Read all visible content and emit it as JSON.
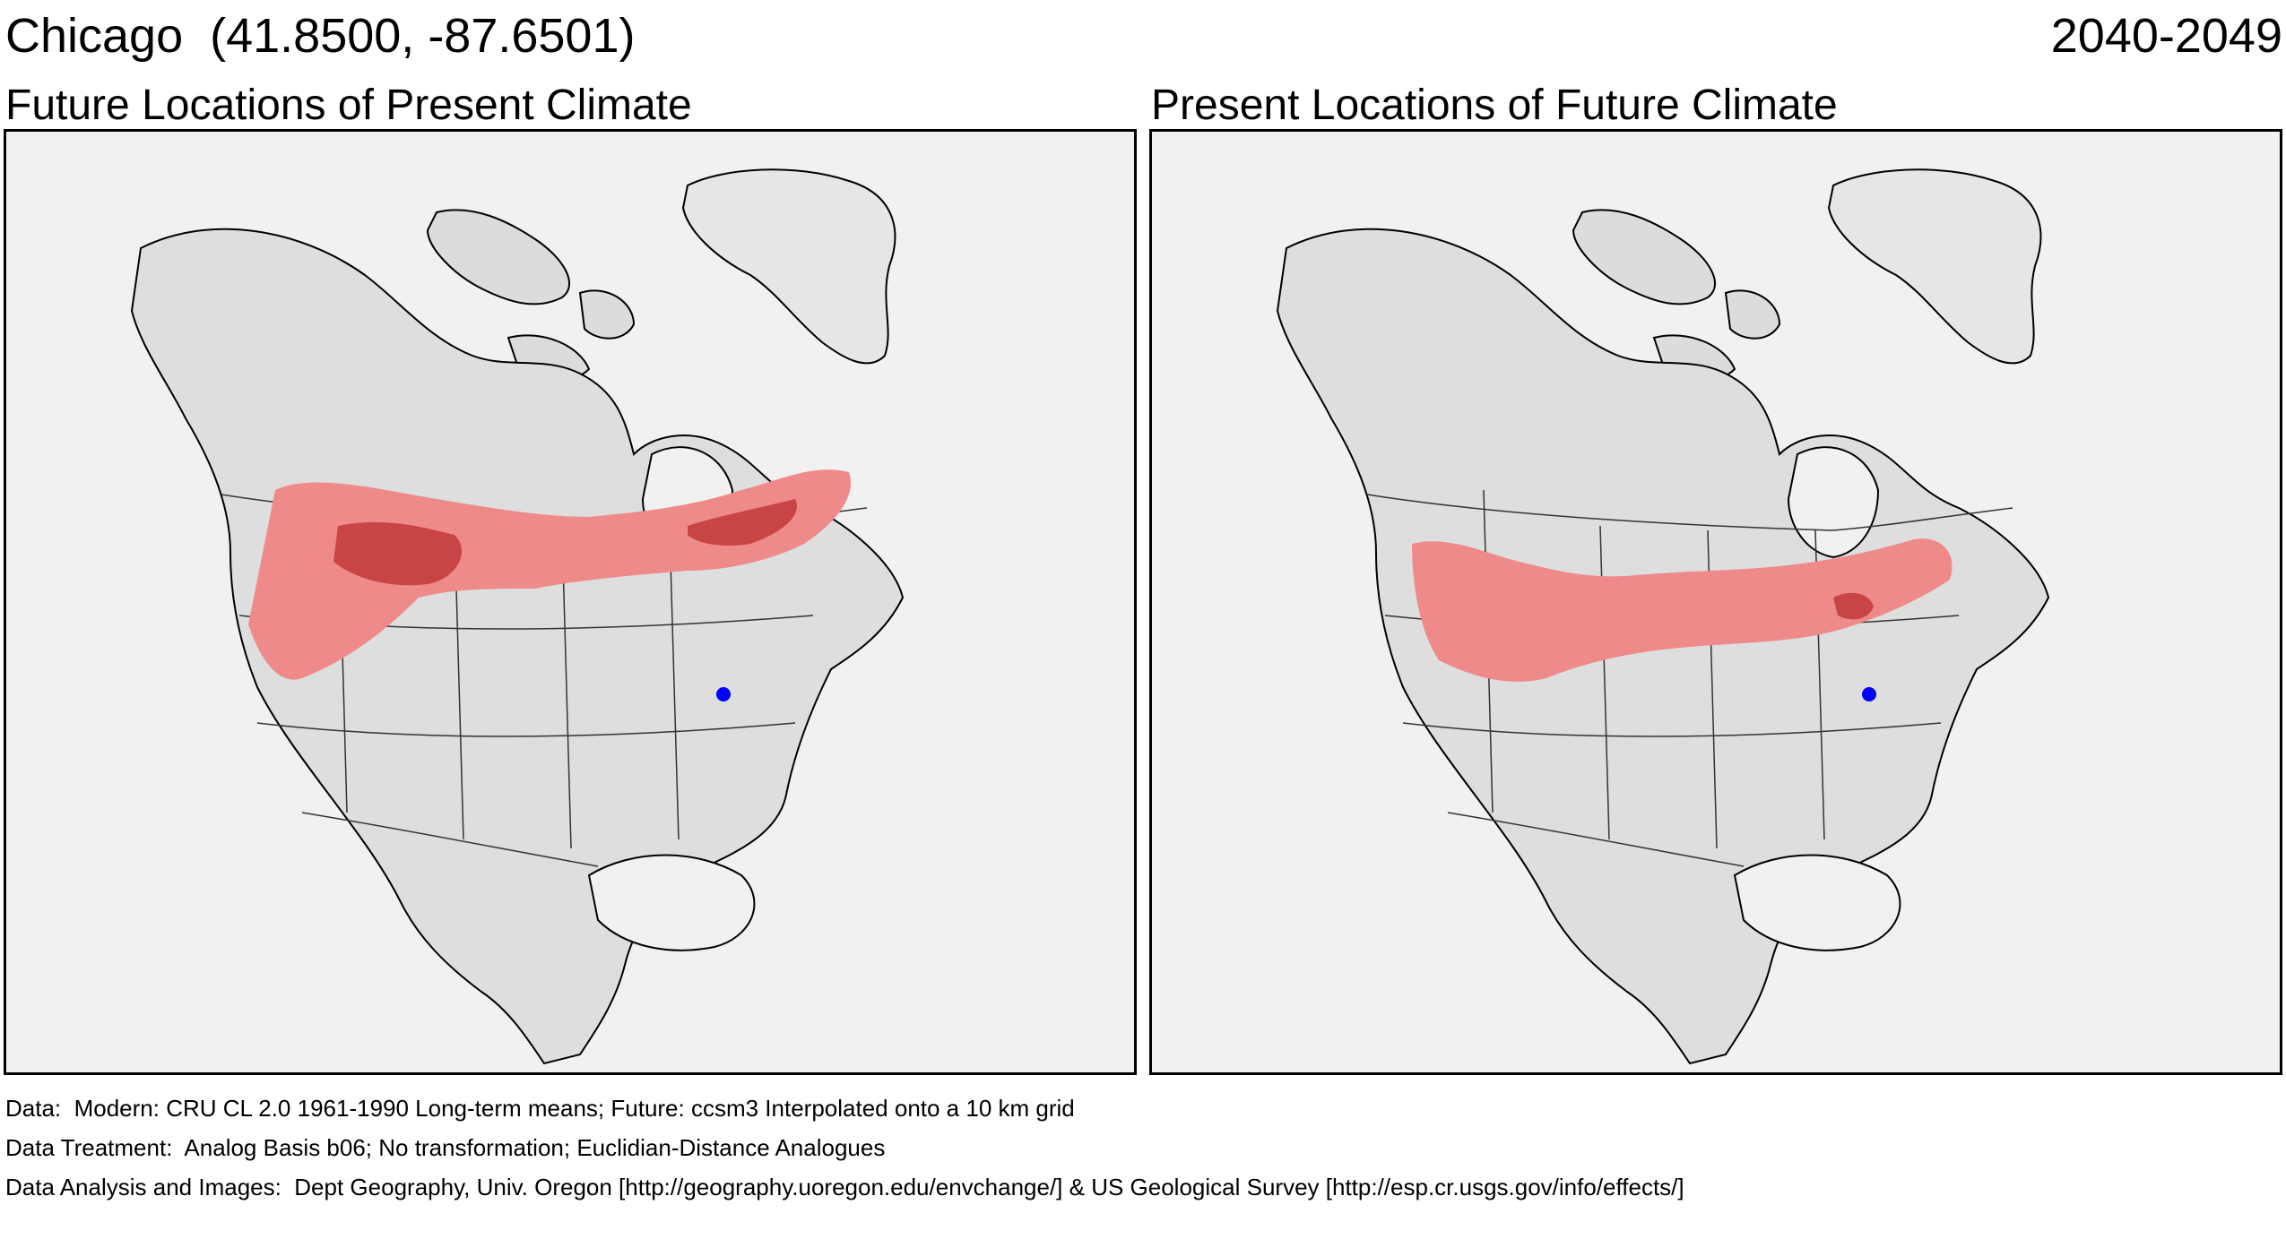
{
  "header": {
    "location": "Chicago  (41.8500, -87.6501)",
    "period": "2040-2049"
  },
  "panels": [
    {
      "title": "Future Locations of Present Climate",
      "colors": {
        "analog_light": "#ef8a8a",
        "analog_dark": "#c94545",
        "site": "#0000ff"
      }
    },
    {
      "title": "Present Locations of Future Climate",
      "colors": {
        "analog_light": "#ef8a8a",
        "analog_dark": "#c94545",
        "site": "#0000ff"
      }
    }
  ],
  "footer": {
    "data": "Data:  Modern: CRU CL 2.0 1961-1990 Long-term means; Future: ccsm3 Interpolated onto a 10 km grid",
    "treatment": "Data Treatment:  Analog Basis b06; No transformation; Euclidian-Distance Analogues",
    "analysis": "Data Analysis and Images:  Dept Geography, Univ. Oregon [http://geography.uoregon.edu/envchange/] & US Geological Survey [http://esp.cr.usgs.gov/info/effects/]"
  }
}
